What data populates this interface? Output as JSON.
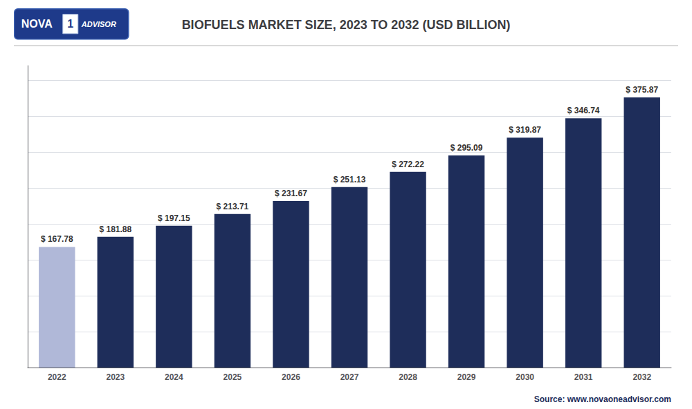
{
  "chart_data": {
    "type": "bar",
    "title": "BIOFUELS MARKET SIZE, 2023 TO 2032 (USD BILLION)",
    "categories": [
      "2022",
      "2023",
      "2024",
      "2025",
      "2026",
      "2027",
      "2028",
      "2029",
      "2030",
      "2031",
      "2032"
    ],
    "values": [
      167.78,
      181.88,
      197.15,
      213.71,
      231.67,
      251.13,
      272.22,
      295.09,
      319.87,
      346.74,
      375.87
    ],
    "value_labels": [
      "$ 167.78",
      "$ 181.88",
      "$ 197.15",
      "$ 213.71",
      "$ 231.67",
      "$ 251.13",
      "$ 272.22",
      "$ 295.09",
      "$ 319.87",
      "$ 346.74",
      "$ 375.87"
    ],
    "data_labels": true,
    "colors": [
      "#b0b8d8",
      "#1e2d5a",
      "#1e2d5a",
      "#1e2d5a",
      "#1e2d5a",
      "#1e2d5a",
      "#1e2d5a",
      "#1e2d5a",
      "#1e2d5a",
      "#1e2d5a",
      "#1e2d5a"
    ],
    "ylim": [
      0,
      420
    ],
    "yticks": [
      0,
      50,
      100,
      150,
      200,
      250,
      300,
      350,
      400
    ],
    "grid": true,
    "tick_labels": "x",
    "annotations": [
      "NOVA",
      "1",
      "ADVISOR",
      "Source: www.novaoneadvisor.com"
    ]
  }
}
